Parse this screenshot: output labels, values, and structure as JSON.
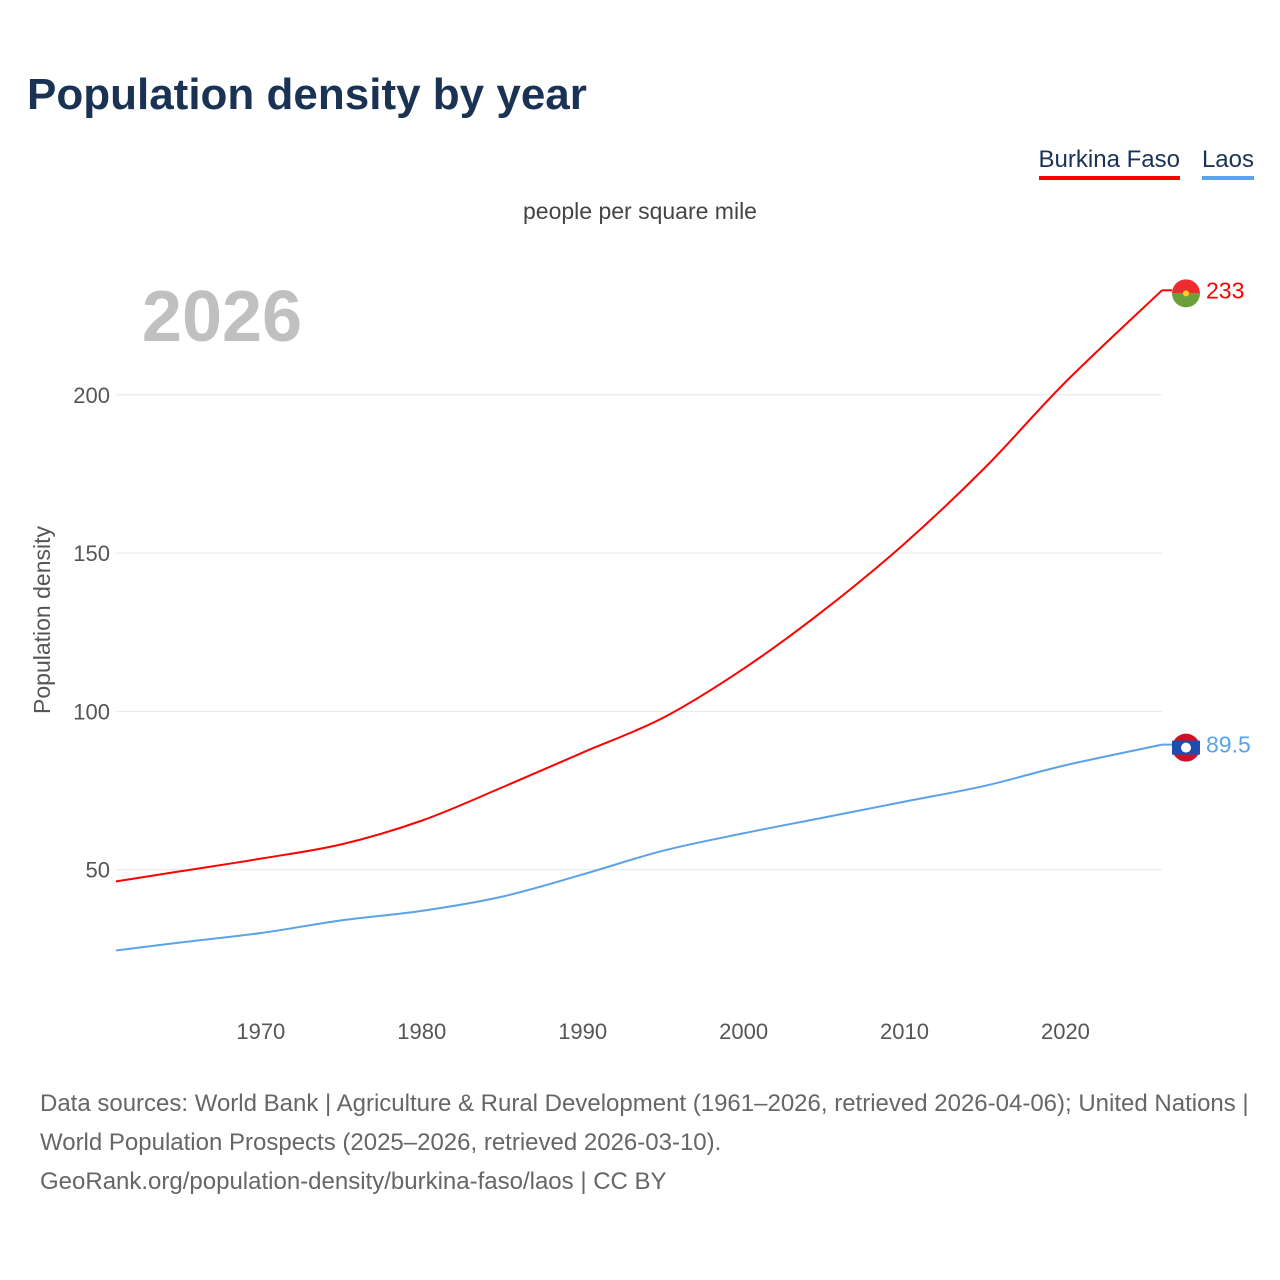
{
  "title": "Population density by year",
  "subtitle": "people per square mile",
  "year_watermark": "2026",
  "footer": {
    "line1": "Data sources: World Bank | Agriculture & Rural Development (1961–2026, retrieved 2026-04-06); United Nations | World Population Prospects (2025–2026, retrieved 2026-03-10).",
    "line2": "GeoRank.org/population-density/burkina-faso/laos | CC BY"
  },
  "chart_data": {
    "type": "line",
    "title": "Population density by year",
    "ylabel": "Population density",
    "xlabel": "",
    "xlim": [
      1961,
      2026
    ],
    "ylim": [
      0,
      240
    ],
    "yticks": [
      50,
      100,
      150,
      200
    ],
    "xticks": [
      1970,
      1980,
      1990,
      2000,
      2010,
      2020
    ],
    "grid": true,
    "legend_position": "top-right",
    "x": [
      1961,
      1965,
      1970,
      1975,
      1980,
      1985,
      1990,
      1995,
      2000,
      2005,
      2010,
      2015,
      2020,
      2026
    ],
    "series": [
      {
        "name": "Burkina Faso",
        "color": "#ff0000",
        "end_label": "233",
        "values": [
          46.3,
          49.5,
          53.5,
          58,
          65.5,
          76,
          87,
          98,
          113.5,
          132,
          153,
          177,
          204,
          233
        ]
      },
      {
        "name": "Laos",
        "color": "#5aa2ea",
        "end_label": "89.5",
        "values": [
          24.5,
          27,
          30,
          34,
          37,
          41.5,
          48.5,
          56,
          61.5,
          66.5,
          71.5,
          76.5,
          83,
          89.5
        ]
      }
    ]
  }
}
